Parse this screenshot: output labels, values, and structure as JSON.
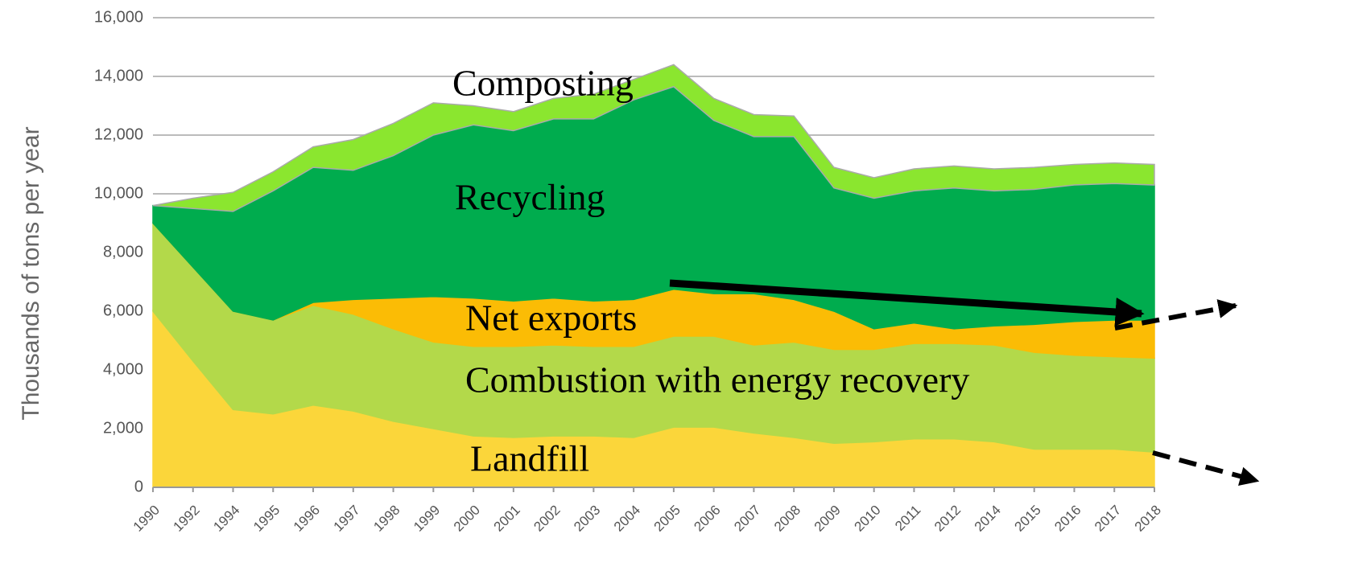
{
  "chart_data": {
    "type": "stacked_area",
    "y_label": "Thousands of tons per year",
    "categories": [
      "1990",
      "1992",
      "1994",
      "1995",
      "1996",
      "1997",
      "1998",
      "1999",
      "2000",
      "2001",
      "2002",
      "2003",
      "2004",
      "2005",
      "2006",
      "2007",
      "2008",
      "2009",
      "2010",
      "2011",
      "2012",
      "2014",
      "2015",
      "2016",
      "2017",
      "2018"
    ],
    "series": [
      {
        "name": "Landfill",
        "color": "#fbd63a",
        "values": [
          6000,
          4300,
          2650,
          2500,
          2800,
          2600,
          2250,
          2000,
          1750,
          1700,
          1750,
          1750,
          1700,
          2050,
          2050,
          1850,
          1700,
          1500,
          1550,
          1650,
          1650,
          1550,
          1300,
          1300,
          1300,
          1200
        ]
      },
      {
        "name": "Combustion with energy recovery",
        "color": "#b3d94a",
        "values": [
          3000,
          3200,
          3350,
          3200,
          3400,
          3300,
          3150,
          2950,
          3050,
          3100,
          3100,
          3050,
          3100,
          3100,
          3100,
          3000,
          3250,
          3200,
          3150,
          3250,
          3250,
          3300,
          3300,
          3200,
          3150,
          3200
        ]
      },
      {
        "name": "Net exports",
        "color": "#fbbc05",
        "values": [
          0,
          0,
          0,
          0,
          100,
          500,
          1050,
          1550,
          1650,
          1550,
          1600,
          1550,
          1600,
          1600,
          1450,
          1750,
          1450,
          1300,
          700,
          700,
          500,
          650,
          950,
          1150,
          1250,
          1300
        ]
      },
      {
        "name": "Recycling",
        "color": "#00ac4e",
        "values": [
          600,
          2000,
          3400,
          4400,
          4600,
          4400,
          4850,
          5500,
          5900,
          5800,
          6100,
          6200,
          6800,
          6900,
          5900,
          5350,
          5550,
          4200,
          4450,
          4500,
          4800,
          4600,
          4600,
          4650,
          4650,
          4600
        ]
      },
      {
        "name": "Composting",
        "color": "#8be62f",
        "values": [
          0,
          350,
          650,
          650,
          700,
          1050,
          1100,
          1100,
          650,
          650,
          700,
          850,
          700,
          750,
          750,
          750,
          700,
          700,
          700,
          750,
          750,
          750,
          750,
          700,
          700,
          700
        ]
      }
    ],
    "ylim": [
      0,
      16000
    ],
    "yticks": [
      0,
      {
        "value": 2000,
        "label": "2,000"
      },
      {
        "value": 4000,
        "label": "4,000"
      },
      {
        "value": 6000,
        "label": "6,000"
      },
      {
        "value": 8000,
        "label": "8,000"
      },
      {
        "value": 10000,
        "label": "10,000"
      },
      {
        "value": 12000,
        "label": "12,000"
      },
      {
        "value": 14000,
        "label": "14,000"
      },
      {
        "value": 16000,
        "label": "16,000"
      }
    ],
    "grid": true
  }
}
